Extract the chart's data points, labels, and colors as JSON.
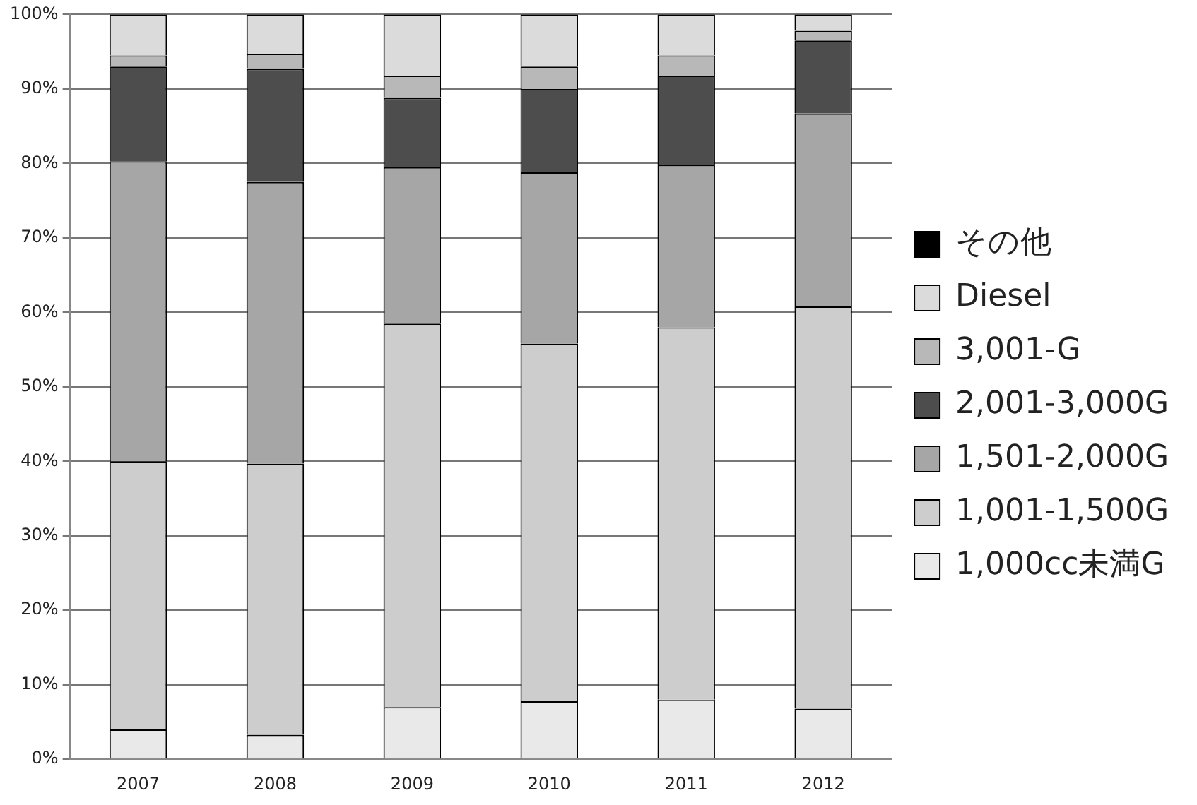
{
  "chart_data": {
    "type": "bar",
    "stacked": true,
    "categories": [
      "2007",
      "2008",
      "2009",
      "2010",
      "2011",
      "2012"
    ],
    "series": [
      {
        "name": "1,000cc未満G",
        "color": "#e9e9e9",
        "values": [
          4,
          3.3,
          7,
          7.8,
          8,
          6.8
        ]
      },
      {
        "name": "1,001-1,500G",
        "color": "#cdcdcd",
        "values": [
          36,
          36.4,
          51.5,
          48,
          50,
          54
        ]
      },
      {
        "name": "1,501-2,000G",
        "color": "#a6a6a6",
        "values": [
          40.3,
          37.8,
          21,
          23,
          21.8,
          25.9
        ]
      },
      {
        "name": "2,001-3,000G",
        "color": "#4d4d4d",
        "values": [
          12.7,
          15.2,
          9.3,
          11.2,
          12,
          9.8
        ]
      },
      {
        "name": "3,001-G",
        "color": "#b8b8b8",
        "values": [
          1.5,
          2,
          3,
          3,
          2.7,
          1.3
        ]
      },
      {
        "name": "Diesel",
        "color": "#dbdbdb",
        "values": [
          5.5,
          5.3,
          8.2,
          7,
          5.5,
          2.2
        ]
      },
      {
        "name": "その他",
        "color": "#000000",
        "values": [
          0,
          0,
          0,
          0,
          0,
          0
        ]
      }
    ],
    "ylim": [
      0,
      100
    ],
    "yticks": [
      {
        "value": 0,
        "label": "0%"
      },
      {
        "value": 10,
        "label": "10%"
      },
      {
        "value": 20,
        "label": "20%"
      },
      {
        "value": 30,
        "label": "30%"
      },
      {
        "value": 40,
        "label": "40%"
      },
      {
        "value": 50,
        "label": "50%"
      },
      {
        "value": 60,
        "label": "60%"
      },
      {
        "value": 70,
        "label": "70%"
      },
      {
        "value": 80,
        "label": "80%"
      },
      {
        "value": 90,
        "label": "90%"
      },
      {
        "value": 100,
        "label": "100%"
      }
    ],
    "grid": "y",
    "legend": "right"
  }
}
